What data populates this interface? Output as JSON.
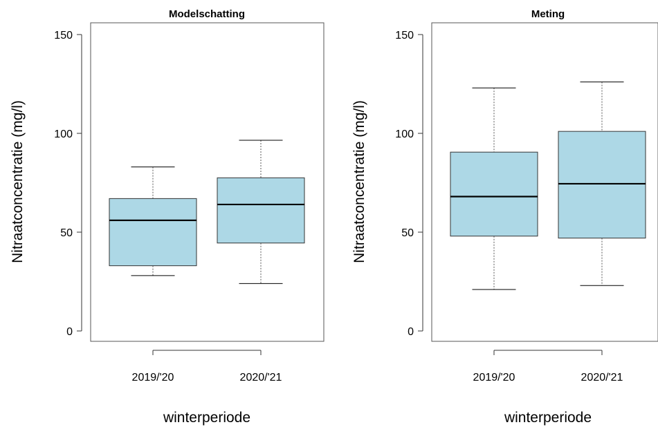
{
  "chart_data": [
    {
      "type": "boxplot",
      "title": "Modelschatting",
      "xlabel": "winterperiode",
      "ylabel": "Nitraatconcentratie (mg/l)",
      "ylim": [
        -5,
        155
      ],
      "yticks": [
        0,
        50,
        100,
        150
      ],
      "categories": [
        "2019/'20",
        "2020/'21"
      ],
      "boxes": [
        {
          "category": "2019/'20",
          "whisker_low": 28,
          "q1": 33,
          "median": 56,
          "q3": 67,
          "whisker_high": 83
        },
        {
          "category": "2020/'21",
          "whisker_low": 24,
          "q1": 44.5,
          "median": 64,
          "q3": 77.5,
          "whisker_high": 96.5
        }
      ],
      "box_color": "#add8e6"
    },
    {
      "type": "boxplot",
      "title": "Meting",
      "xlabel": "winterperiode",
      "ylabel": "Nitraatconcentratie (mg/l)",
      "ylim": [
        -5,
        155
      ],
      "yticks": [
        0,
        50,
        100,
        150
      ],
      "categories": [
        "2019/'20",
        "2020/'21"
      ],
      "boxes": [
        {
          "category": "2019/'20",
          "whisker_low": 21,
          "q1": 48,
          "median": 68,
          "q3": 90.5,
          "whisker_high": 123
        },
        {
          "category": "2020/'21",
          "whisker_low": 23,
          "q1": 47,
          "median": 74.5,
          "q3": 101,
          "whisker_high": 126
        }
      ],
      "box_color": "#add8e6"
    }
  ]
}
